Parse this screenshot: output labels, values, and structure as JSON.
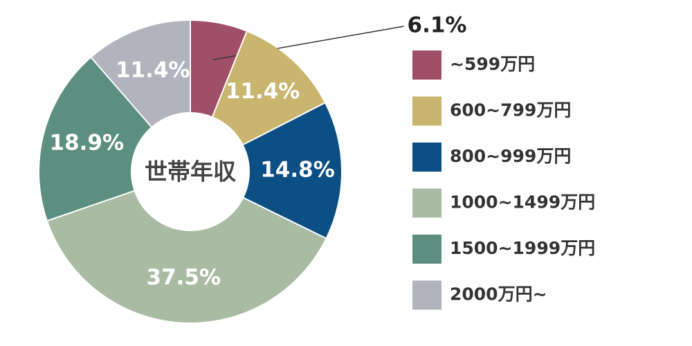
{
  "chart_data": {
    "type": "donut",
    "center_label": "世帯年収",
    "categories": [
      "~599万円",
      "600~799万円",
      "800~999万円",
      "1000~1499万円",
      "1500~1999万円",
      "2000万円~"
    ],
    "values": [
      6.1,
      11.4,
      14.8,
      37.5,
      18.9,
      11.4
    ],
    "value_labels": [
      "6.1%",
      "11.4%",
      "14.8%",
      "37.5%",
      "18.9%",
      "11.4%"
    ],
    "colors": [
      "#a04f68",
      "#c9b56e",
      "#0b4f84",
      "#a9bba3",
      "#5c8f80",
      "#b1b3bd"
    ],
    "legend": "right"
  }
}
